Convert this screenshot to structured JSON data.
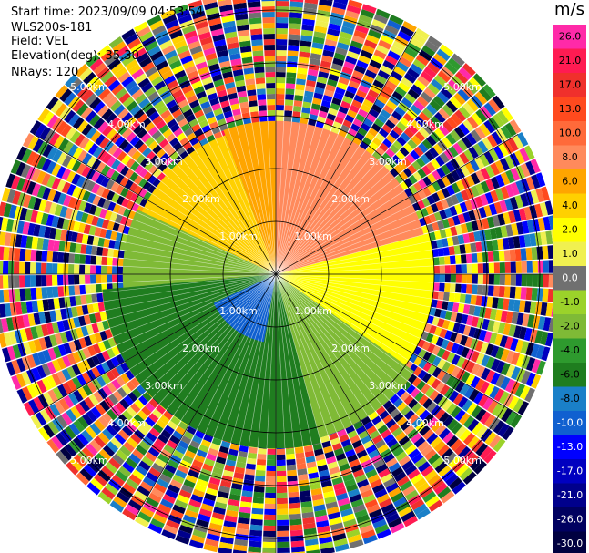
{
  "info": {
    "start_time": "Start time: 2023/09/09 04:53:54",
    "site": "WLS200s-181",
    "field": "Field: VEL",
    "elevation": "Elevation(deg): 35.30",
    "nrays": "NRays: 120"
  },
  "colorbar": {
    "unit": "m/s",
    "ticks": [
      "26.0",
      "21.0",
      "17.0",
      "13.0",
      "10.0",
      "8.0",
      "6.0",
      "4.0",
      "2.0",
      "1.0",
      "0.0",
      "-1.0",
      "-2.0",
      "-4.0",
      "-6.0",
      "-8.0",
      "-10.0",
      "-13.0",
      "-17.0",
      "-21.0",
      "-26.0",
      "-30.0"
    ],
    "colors": [
      "#ff2aa8",
      "#ff1b52",
      "#f0302c",
      "#ff4a1e",
      "#ff6a3a",
      "#ff8a5c",
      "#ffa500",
      "#ffd000",
      "#ffff00",
      "#f0f050",
      "#707070",
      "#9bd22a",
      "#7fba36",
      "#2e9a2e",
      "#1f7d1f",
      "#1a80c8",
      "#1060d0",
      "#0000ff",
      "#0000c0",
      "#00008c",
      "#000060",
      "#000040"
    ]
  },
  "chart_data": {
    "type": "ppi",
    "field": "VEL",
    "units": "m/s",
    "nrays": 120,
    "range_ring_labels": [
      "1.00km",
      "2.00km",
      "3.00km",
      "4.00km",
      "5.00km"
    ],
    "range_rings_km": [
      1,
      2,
      3,
      4,
      5
    ],
    "max_range_km": 5.3,
    "velocity_sectors": [
      {
        "from_deg": 0,
        "to_deg": 75,
        "max_km": 2.9,
        "value": 8.0
      },
      {
        "from_deg": 75,
        "to_deg": 125,
        "max_km": 3.0,
        "value": 2.0
      },
      {
        "from_deg": 125,
        "to_deg": 165,
        "max_km": 3.2,
        "value": -2.0
      },
      {
        "from_deg": 165,
        "to_deg": 265,
        "max_km": 3.3,
        "value": -6.0
      },
      {
        "from_deg": 190,
        "to_deg": 245,
        "max_km": 1.3,
        "value": -10.0
      },
      {
        "from_deg": 265,
        "to_deg": 295,
        "max_km": 2.9,
        "value": -2.0
      },
      {
        "from_deg": 295,
        "to_deg": 340,
        "max_km": 2.8,
        "value": 4.0
      },
      {
        "from_deg": 340,
        "to_deg": 360,
        "max_km": 2.9,
        "value": 6.0
      }
    ]
  }
}
